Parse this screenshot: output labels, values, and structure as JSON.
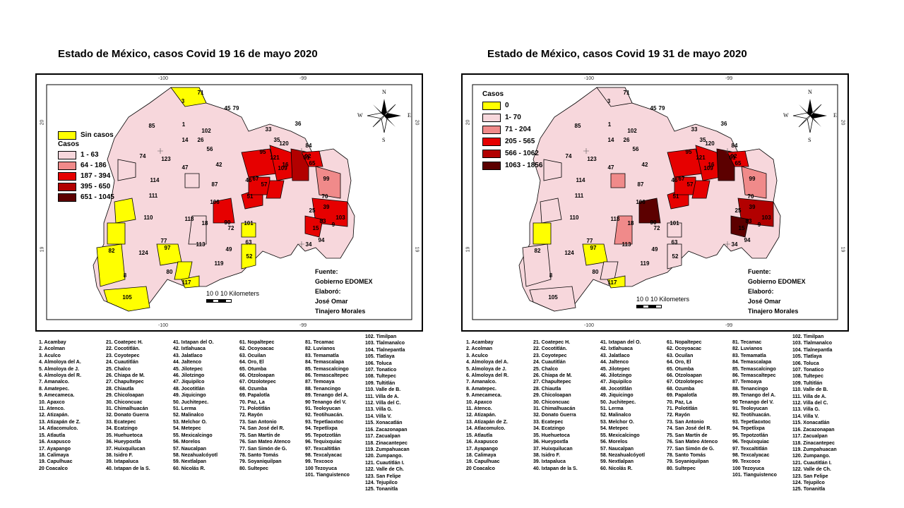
{
  "colors": {
    "yellow": "#ffff00",
    "c1": "#f7d7dc",
    "c2": "#f08a8a",
    "c3": "#e60000",
    "c4": "#b20000",
    "c5": "#5c0000",
    "border": "#000000"
  },
  "left": {
    "title": "Estado de México, casos Covid 19 16 de mayo 2020",
    "legend": {
      "no_cases": "Sin casos",
      "head": "Casos",
      "items": [
        "1 - 63",
        "64 - 186",
        "187 - 394",
        "395 - 650",
        "651 - 1045"
      ]
    },
    "source": [
      "Fuente:",
      "Gobierno EDOMEX",
      "Elaboró:",
      "José Omar",
      "Tinajero Morales"
    ],
    "scale": "10  0  10  Kilometers",
    "ticks": {
      "top": [
        "-100",
        "-99"
      ],
      "bottom": [
        "-100",
        "-99"
      ],
      "left": [
        "20",
        "19"
      ],
      "right": [
        "20",
        "19"
      ]
    }
  },
  "right": {
    "title": "Estado de México, casos Covid 19  31 de mayo 2020",
    "legend": {
      "head": "Casos",
      "items": [
        "0",
        "1- 70",
        "71 - 204",
        "205 - 565",
        "566 - 1062",
        "1063 - 1856"
      ]
    },
    "source": [
      "Fuente:",
      "Gobierno EDOMEX",
      "Elaboró:",
      "José Omar",
      "Tinajero Morales"
    ],
    "scale": "10  0  10  Kilometers",
    "ticks": {
      "top": [
        "-100",
        "-99"
      ],
      "bottom": [
        "-100",
        "-99"
      ],
      "left": [
        "20",
        "19"
      ],
      "right": [
        "20",
        "19"
      ]
    }
  },
  "compass": {
    "n": "N",
    "s": "S",
    "e": "E",
    "w": "W"
  },
  "map_labels": [
    "3",
    "71",
    "45",
    "79",
    "85",
    "1",
    "102",
    "26",
    "14",
    "56",
    "74",
    "123",
    "42",
    "47",
    "114",
    "111",
    "87",
    "106",
    "51",
    "67",
    "46",
    "57",
    "110",
    "118",
    "18",
    "90",
    "72",
    "101",
    "63",
    "82",
    "124",
    "97",
    "77",
    "113",
    "49",
    "52",
    "8",
    "80",
    "119",
    "117",
    "105",
    "33",
    "35",
    "36",
    "120",
    "95",
    "121",
    "109",
    "16",
    "61",
    "84",
    "92",
    "65",
    "99",
    "70",
    "39",
    "25",
    "103",
    "83",
    "15",
    "94",
    "34",
    "9"
  ],
  "index": [
    [
      "1. Acambay",
      "2. Acolman",
      "3. Aculco",
      "4. Almoloya del A.",
      "5. Almoloya de J.",
      "6. Almoloya del R.",
      "7. Amanalco.",
      "8. Amatepec.",
      "9. Amecameca.",
      "10. Apaxco",
      "11. Atenco.",
      "12. Atizapán.",
      "13. Atizapán de Z.",
      "14. Atlacomulco.",
      "15. Atlautla",
      "16. Axapusco",
      "17. Ayapango",
      "18. Calimaya",
      "19. Capulhuac",
      "20 Coacalco"
    ],
    [
      "21. Coatepec H.",
      "22. Cocotitlán.",
      "23. Coyotepec",
      "24. Cuautitlán",
      "25. Chalco",
      "26. Chiapa de M.",
      "27. Chapultepec",
      "28. Chiautla",
      "29. Chicoloapan",
      "30. Chiconcuac",
      "31. Chimalhuacán",
      "32. Donato Guerra",
      "33. Ecatepec",
      "34. Ecatzingo",
      "35. Huehuetoca",
      "36. Hueypoxtla",
      "37. Huixquilucan",
      "38. Isidro F.",
      "39. Ixtapaluca",
      "40. Ixtapan de la S."
    ],
    [
      "41. Ixtapan del O.",
      "42. Ixtlahuaca",
      "43. Jalatlaco",
      "44. Jaltenco",
      "45. Jilotepec",
      "46. Jilotzingo",
      "47. Jiquipilco",
      "48. Jocotitlán",
      "49.  Jiquicingo",
      "50. Juchitepec.",
      "51. Lerma",
      "52. Malinalco",
      "53. Melchor O.",
      "54. Metepec",
      "55. Mexicalcingo",
      "56. Morelos",
      "57. Naucalpan",
      "58. Nezahualcóyotl",
      "59. Nextlalpan",
      "60. Nicolás R."
    ],
    [
      "61. Nopaltepec",
      "62. Ocoyoacac",
      "63. Ocuilan",
      "64. Oro, El",
      "65. Otumba",
      "66. Otzoloapan",
      "67. Otzolotepec",
      "68. Ozumba",
      "69. Papalotla",
      "70. Paz, La",
      "71. Polotitlán",
      "72. Rayón",
      "73. San Antonio",
      "74. San José del R.",
      "75. San Martín de",
      "76. San Mateo Atenco",
      "77. San Simón de G.",
      "78. Santo Tomás",
      "79. Soyaniquilpan",
      "80. Sultepec"
    ],
    [
      "81. Tecamac",
      "82. Luvianos",
      "83. Temamatla",
      "84. Temascalapa",
      "85. Temascalcingo",
      "86. Temascaltepec",
      "87. Temoaya",
      "88. Tenancingo",
      "89. Tenango del A.",
      "90 Tenango del V.",
      "91. Teoloyucan",
      "92. Teotihuacán.",
      "93. Tepetlaoxtoc",
      "94. Tepetlixpa",
      "95. Tepotzotlán",
      "96. Tequixquiac",
      "97. Texcaltitlán",
      "98. Texcalyacac",
      "99. Texcoco",
      "100 Tezoyuca",
      "101. Tianguistenco"
    ],
    [
      "102. Timilpan",
      "103. Tlalmanalco",
      "104. Tlalnepantla",
      "105. Tlatlaya",
      "106. Toluca",
      "107. Tonatico",
      "108. Tultepec",
      "109. Tultitlán",
      "110. Valle de B.",
      "111. Villa de A.",
      "112. Villa del C.",
      "113. Villa G.",
      "114. Villa V.",
      "115. Xonacatlán",
      "116. Zacazonapan",
      "117. Zacualpan",
      "118. Zinacantepec",
      "119. Zumpahuacan",
      "120. Zumpango.",
      "121. Cuautitlán I.",
      "122. Valle de Ch.",
      "123. San Felipe",
      "124. Tejupilco",
      "125. Tonanitla"
    ]
  ]
}
